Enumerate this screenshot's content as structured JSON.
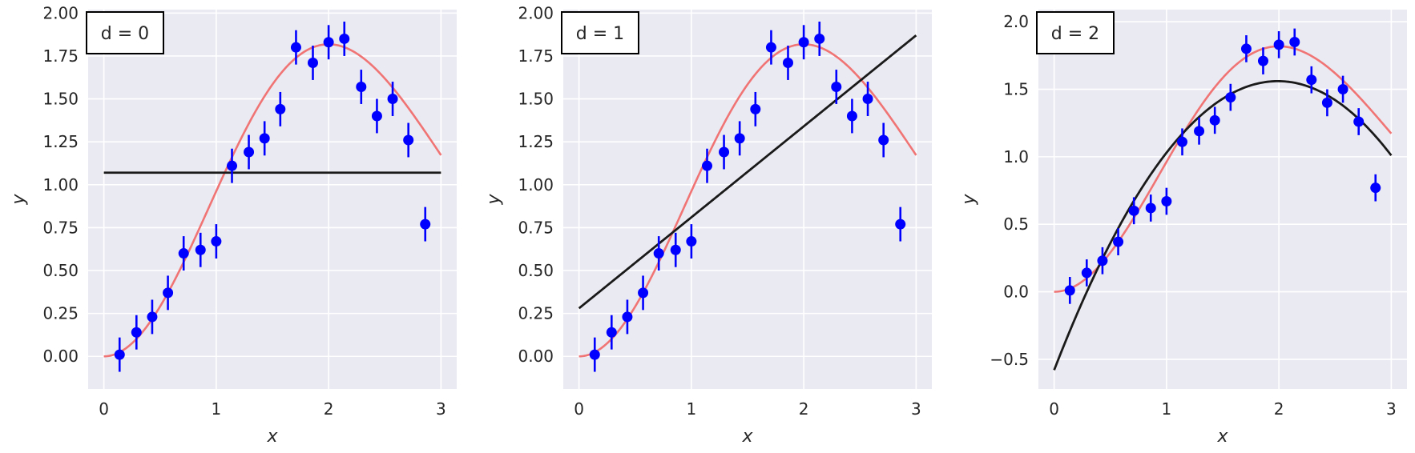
{
  "chart_data": [
    {
      "type": "scatter",
      "legend": "d = 0",
      "xlabel": "x",
      "ylabel": "y",
      "xlim": [
        -0.14,
        3.14
      ],
      "ylim": [
        -0.19,
        2.02
      ],
      "xticks": [
        0,
        1,
        2,
        3
      ],
      "yticks": [
        0.0,
        0.25,
        0.5,
        0.75,
        1.0,
        1.25,
        1.5,
        1.75,
        2.0
      ],
      "ytick_labels": [
        "0.00",
        "0.25",
        "0.50",
        "0.75",
        "1.00",
        "1.25",
        "1.50",
        "1.75",
        "2.00"
      ],
      "points": {
        "x": [
          0.14,
          0.29,
          0.43,
          0.57,
          0.71,
          0.86,
          1.0,
          1.14,
          1.29,
          1.43,
          1.57,
          1.71,
          1.86,
          2.0,
          2.14,
          2.29,
          2.43,
          2.57,
          2.71,
          2.86
        ],
        "y": [
          0.01,
          0.14,
          0.23,
          0.37,
          0.6,
          0.62,
          0.67,
          1.11,
          1.19,
          1.27,
          1.44,
          1.8,
          1.71,
          1.83,
          1.85,
          1.57,
          1.4,
          1.5,
          1.26,
          0.77
        ],
        "yerr": 0.1,
        "color": "#0000ff"
      },
      "true_curve": {
        "color": "#f07474"
      },
      "fit": {
        "degree": 0,
        "coef": [
          1.07
        ],
        "color": "#1a1a1a"
      }
    },
    {
      "type": "scatter",
      "legend": "d = 1",
      "xlabel": "x",
      "ylabel": "y",
      "xlim": [
        -0.14,
        3.14
      ],
      "ylim": [
        -0.19,
        2.02
      ],
      "xticks": [
        0,
        1,
        2,
        3
      ],
      "yticks": [
        0.0,
        0.25,
        0.5,
        0.75,
        1.0,
        1.25,
        1.5,
        1.75,
        2.0
      ],
      "ytick_labels": [
        "0.00",
        "0.25",
        "0.50",
        "0.75",
        "1.00",
        "1.25",
        "1.50",
        "1.75",
        "2.00"
      ],
      "points": {
        "x": [
          0.14,
          0.29,
          0.43,
          0.57,
          0.71,
          0.86,
          1.0,
          1.14,
          1.29,
          1.43,
          1.57,
          1.71,
          1.86,
          2.0,
          2.14,
          2.29,
          2.43,
          2.57,
          2.71,
          2.86
        ],
        "y": [
          0.01,
          0.14,
          0.23,
          0.37,
          0.6,
          0.62,
          0.67,
          1.11,
          1.19,
          1.27,
          1.44,
          1.8,
          1.71,
          1.83,
          1.85,
          1.57,
          1.4,
          1.5,
          1.26,
          0.77
        ],
        "yerr": 0.1,
        "color": "#0000ff"
      },
      "true_curve": {
        "color": "#f07474"
      },
      "fit": {
        "degree": 1,
        "coef": [
          0.28,
          0.53
        ],
        "color": "#1a1a1a"
      }
    },
    {
      "type": "scatter",
      "legend": "d = 2",
      "xlabel": "x",
      "ylabel": "y",
      "xlim": [
        -0.14,
        3.14
      ],
      "ylim": [
        -0.72,
        2.09
      ],
      "xticks": [
        0,
        1,
        2,
        3
      ],
      "yticks": [
        -0.5,
        0.0,
        0.5,
        1.0,
        1.5,
        2.0
      ],
      "ytick_labels": [
        "−0.5",
        "0.0",
        "0.5",
        "1.0",
        "1.5",
        "2.0"
      ],
      "points": {
        "x": [
          0.14,
          0.29,
          0.43,
          0.57,
          0.71,
          0.86,
          1.0,
          1.14,
          1.29,
          1.43,
          1.57,
          1.71,
          1.86,
          2.0,
          2.14,
          2.29,
          2.43,
          2.57,
          2.71,
          2.86
        ],
        "y": [
          0.01,
          0.14,
          0.23,
          0.37,
          0.6,
          0.62,
          0.67,
          1.11,
          1.19,
          1.27,
          1.44,
          1.8,
          1.71,
          1.83,
          1.85,
          1.57,
          1.4,
          1.5,
          1.26,
          0.77
        ],
        "yerr": 0.1,
        "color": "#0000ff"
      },
      "true_curve": {
        "color": "#f07474"
      },
      "fit": {
        "degree": 2,
        "coef": [
          -0.58,
          2.15,
          -0.54
        ],
        "color": "#1a1a1a"
      }
    }
  ]
}
